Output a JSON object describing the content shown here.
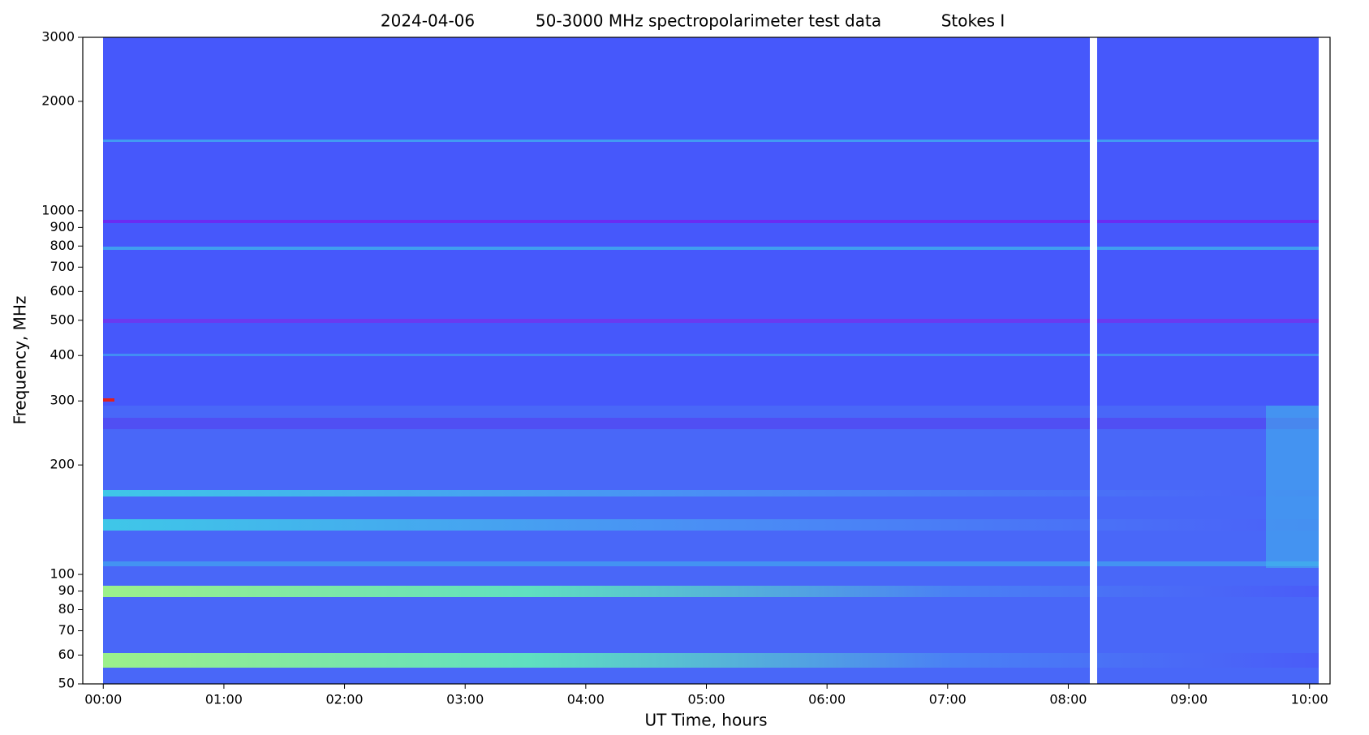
{
  "chart_data": {
    "type": "spectrogram",
    "title_parts": [
      "2024-04-06",
      "50-3000 MHz spectropolarimeter test data",
      "Stokes I"
    ],
    "xlabel": "UT Time, hours",
    "ylabel": "Frequency, MHz",
    "log_y": true,
    "ylim": [
      50,
      3000
    ],
    "yticks": [
      50,
      60,
      70,
      80,
      90,
      100,
      200,
      300,
      400,
      500,
      600,
      700,
      800,
      900,
      1000,
      2000,
      3000
    ],
    "xlim": [
      -0.17,
      10.17
    ],
    "xticks": [
      {
        "value": 0,
        "label": "00:00"
      },
      {
        "value": 1,
        "label": "01:00"
      },
      {
        "value": 2,
        "label": "02:00"
      },
      {
        "value": 3,
        "label": "03:00"
      },
      {
        "value": 4,
        "label": "04:00"
      },
      {
        "value": 5,
        "label": "05:00"
      },
      {
        "value": 6,
        "label": "06:00"
      },
      {
        "value": 7,
        "label": "07:00"
      },
      {
        "value": 8,
        "label": "08:00"
      },
      {
        "value": 9,
        "label": "09:00"
      },
      {
        "value": 10,
        "label": "10:00"
      }
    ]
  }
}
